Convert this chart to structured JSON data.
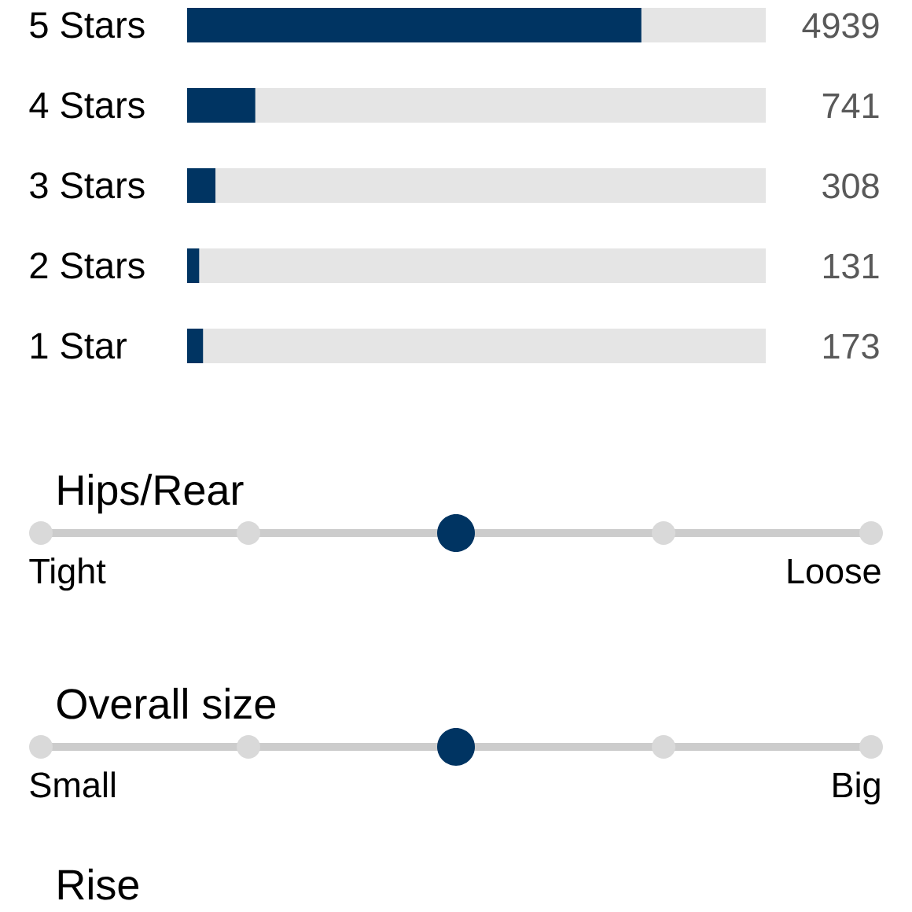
{
  "chart_data": [
    {
      "type": "bar",
      "orientation": "horizontal",
      "categories": [
        "5 Stars",
        "4 Stars",
        "3 Stars",
        "2 Stars",
        "1 Star"
      ],
      "values": [
        4939,
        741,
        308,
        131,
        173
      ],
      "color": "#003462",
      "xlim": [
        0,
        6292
      ],
      "data_labels": true,
      "tick_labels": "y"
    },
    {
      "type": "other",
      "title": "Hips/Rear",
      "categories": [
        "Tight",
        null,
        null,
        null,
        "Loose"
      ]
    },
    {
      "type": "other",
      "title": "Overall size",
      "categories": [
        "Small",
        null,
        null,
        null,
        "Big"
      ]
    },
    {
      "type": "other",
      "title": "Rise"
    }
  ]
}
